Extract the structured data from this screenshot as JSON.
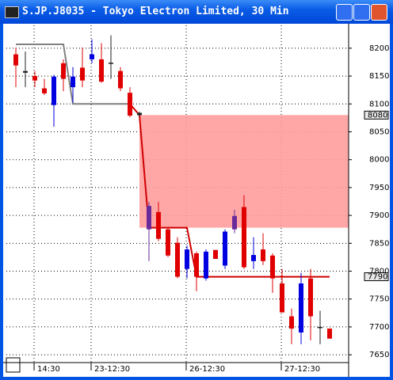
{
  "window_title": "S.JP.J8035 - Tokyo Electron Limited, 30 Min",
  "chart_data": {
    "type": "candlestick",
    "categories": [
      null,
      null,
      "14:30",
      null,
      null,
      null,
      null,
      null,
      "23-12:30",
      null,
      null,
      null,
      null,
      null,
      null,
      null,
      null,
      null,
      "26-12:30",
      null,
      null,
      null,
      null,
      null,
      null,
      null,
      null,
      null,
      "27-12:30",
      null,
      null,
      null,
      null,
      null
    ],
    "candles": {
      "open": [
        8189,
        8156,
        8150,
        8128,
        8098,
        8173,
        8130,
        8165,
        8180,
        8180,
        8174,
        8159,
        8120,
        8084,
        7875,
        7906,
        7875,
        7851,
        7804,
        7832,
        7787,
        7838,
        7810,
        7875,
        7915,
        7818,
        7839,
        7828,
        7778,
        7719,
        7690,
        7787,
        7700,
        7697
      ],
      "high": [
        8201,
        8194,
        8159,
        8145,
        8152,
        8180,
        8166,
        8201,
        8216,
        8209,
        8223,
        8166,
        8130,
        8086,
        7924,
        7924,
        7878,
        7861,
        7846,
        7835,
        7839,
        7838,
        7875,
        7910,
        7936,
        7861,
        7868,
        7832,
        7804,
        7733,
        7797,
        7804,
        7729,
        7697
      ],
      "low": [
        8130,
        8130,
        8130,
        8116,
        8059,
        8123,
        8102,
        8130,
        8173,
        8138,
        8145,
        8123,
        8076,
        8078,
        7818,
        7854,
        7825,
        7787,
        7787,
        7764,
        7783,
        7822,
        7804,
        7868,
        7804,
        7804,
        7811,
        7761,
        7726,
        7669,
        7669,
        7676,
        7669,
        7679
      ],
      "close": [
        8169,
        8159,
        8142,
        8119,
        8149,
        8145,
        8149,
        8142,
        8189,
        8140,
        8174,
        8128,
        8079,
        8080,
        7917,
        7858,
        7828,
        7790,
        7839,
        7790,
        7835,
        7822,
        7871,
        7899,
        7807,
        7829,
        7818,
        7787,
        7726,
        7697,
        7778,
        7719,
        7700,
        7679
      ],
      "colors": [
        "#e00000",
        "#202020",
        "#e00000",
        "#e00000",
        "#0000e0",
        "#e00000",
        "#0000e0",
        "#e00000",
        "#0000e0",
        "#e00000",
        "#202020",
        "#e00000",
        "#e00000",
        "#202020",
        "#6a2a9a",
        "#e00000",
        "#e00000",
        "#e00000",
        "#0000e0",
        "#e00000",
        "#0000e0",
        "#e00000",
        "#0000e0",
        "#6a2a9a",
        "#e00000",
        "#0000e0",
        "#e00000",
        "#e00000",
        "#e00000",
        "#e00000",
        "#0000e0",
        "#e00000",
        "#202020",
        "#e00000"
      ]
    },
    "series": [
      {
        "color": "#808080",
        "values": [
          8207,
          8207,
          8207,
          8207,
          8207,
          8207,
          8100,
          8100,
          8100,
          8100,
          8100,
          8100,
          8100,
          null,
          null,
          null,
          null,
          null,
          null,
          null,
          null,
          null,
          null,
          null,
          null,
          null,
          null,
          null,
          null,
          null,
          null,
          null,
          null,
          null
        ]
      },
      {
        "color": "#d00000",
        "values": [
          null,
          null,
          null,
          null,
          null,
          null,
          null,
          null,
          null,
          null,
          null,
          null,
          8100,
          8080,
          7878,
          7878,
          7878,
          7878,
          7878,
          7790,
          7790,
          7790,
          7790,
          7790,
          7790,
          7790,
          7790,
          7790,
          7790,
          7790,
          7790,
          7790,
          7790,
          7790
        ]
      }
    ],
    "zone": [
      7878,
      8080
    ],
    "zone_color": "#ff9c9c",
    "price_tags": [
      8080,
      7790
    ],
    "ylim": [
      7636,
      8241
    ],
    "yticks": [
      7650,
      7700,
      7750,
      7800,
      7850,
      7900,
      7950,
      8000,
      8050,
      8100,
      8150,
      8200
    ],
    "grid": true
  }
}
